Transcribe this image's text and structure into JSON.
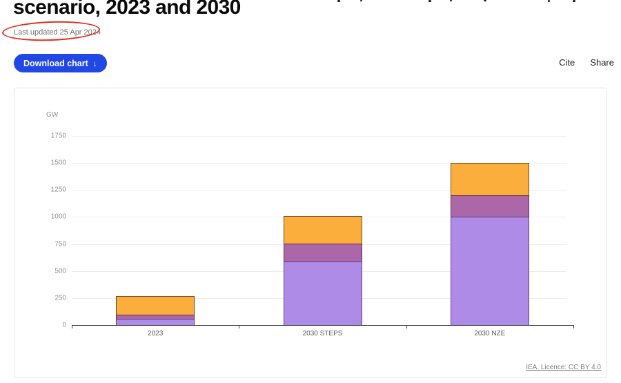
{
  "header": {
    "title_line": "scenario, 2023 and 2030",
    "last_updated": "Last updated 25 Apr 2024",
    "download_button": "Download chart",
    "download_arrow": "↓",
    "cite_label": "Cite",
    "share_label": "Share"
  },
  "colors": {
    "accent_blue": "#2147e5",
    "annotation_red": "#e0301e"
  },
  "chart": {
    "unit_label": "GW",
    "licence_link": "IEA. Licence: CC BY 4.0"
  },
  "chart_data": {
    "type": "bar",
    "stacked": true,
    "title": "scenario, 2023 and 2030 (title partially cropped)",
    "ylabel": "GW",
    "xlabel": "",
    "categories": [
      "2023",
      "2030 STEPS",
      "2030 NZE"
    ],
    "series": [
      {
        "name": "light-purple-segment",
        "color": "#ae8be7",
        "border": "#5f3d85",
        "values": [
          60,
          585,
          1000
        ]
      },
      {
        "name": "magenta-segment",
        "color": "#ab67a8",
        "border": "#5e2c50",
        "values": [
          35,
          170,
          200
        ]
      },
      {
        "name": "orange-segment",
        "color": "#fbae3c",
        "border": "#6e4a1e",
        "values": [
          175,
          255,
          300
        ]
      }
    ],
    "totals": [
      270,
      1010,
      1500
    ],
    "ylim": [
      0,
      1750
    ],
    "ytick_step": 250,
    "grid": true,
    "legend_position": "none"
  }
}
